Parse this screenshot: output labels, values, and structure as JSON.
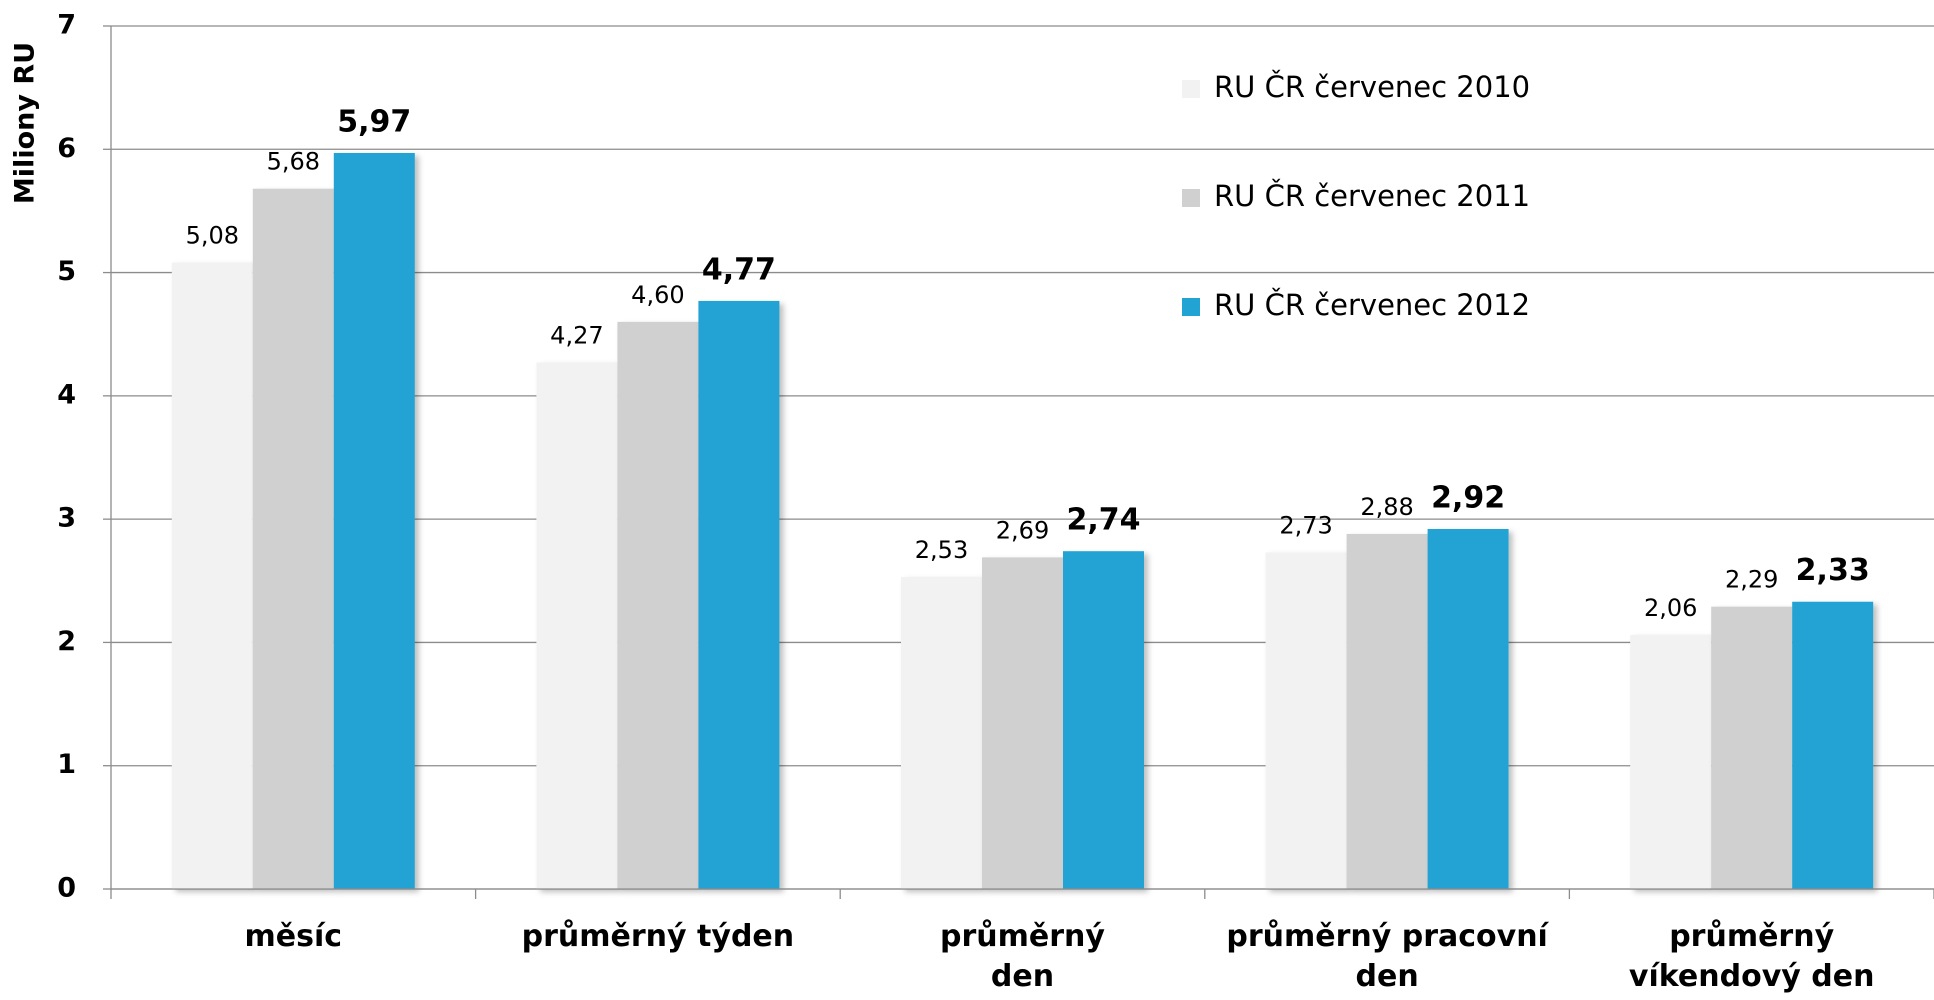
{
  "chart_data": {
    "type": "bar",
    "y_label": "Miliony RU",
    "categories": [
      "měsíc",
      "průměrný týden",
      "průměrný\nden",
      "průměrný pracovní den",
      "průměrný\nvíkendový den"
    ],
    "series": [
      {
        "name": "RU ČR červenec 2010",
        "color": "#f2f2f2",
        "values": [
          5.08,
          4.27,
          2.53,
          2.73,
          2.06
        ],
        "value_labels": [
          "5,08",
          "4,27",
          "2,53",
          "2,73",
          "2,06"
        ]
      },
      {
        "name": "RU ČR červenec 2011",
        "color": "#d0d0d0",
        "values": [
          5.68,
          4.6,
          2.69,
          2.88,
          2.29
        ],
        "value_labels": [
          "5,68",
          "4,60",
          "2,69",
          "2,88",
          "2,29"
        ]
      },
      {
        "name": "RU ČR červenec 2012",
        "color": "#21a3d3",
        "values": [
          5.97,
          4.77,
          2.74,
          2.92,
          2.33
        ],
        "value_labels": [
          "5,97",
          "4,77",
          "2,74",
          "2,92",
          "2,33"
        ]
      }
    ],
    "ylim": [
      0,
      7
    ],
    "yticks": [
      0,
      1,
      2,
      3,
      4,
      5,
      6,
      7
    ],
    "grid": true,
    "legend": "top-right"
  }
}
